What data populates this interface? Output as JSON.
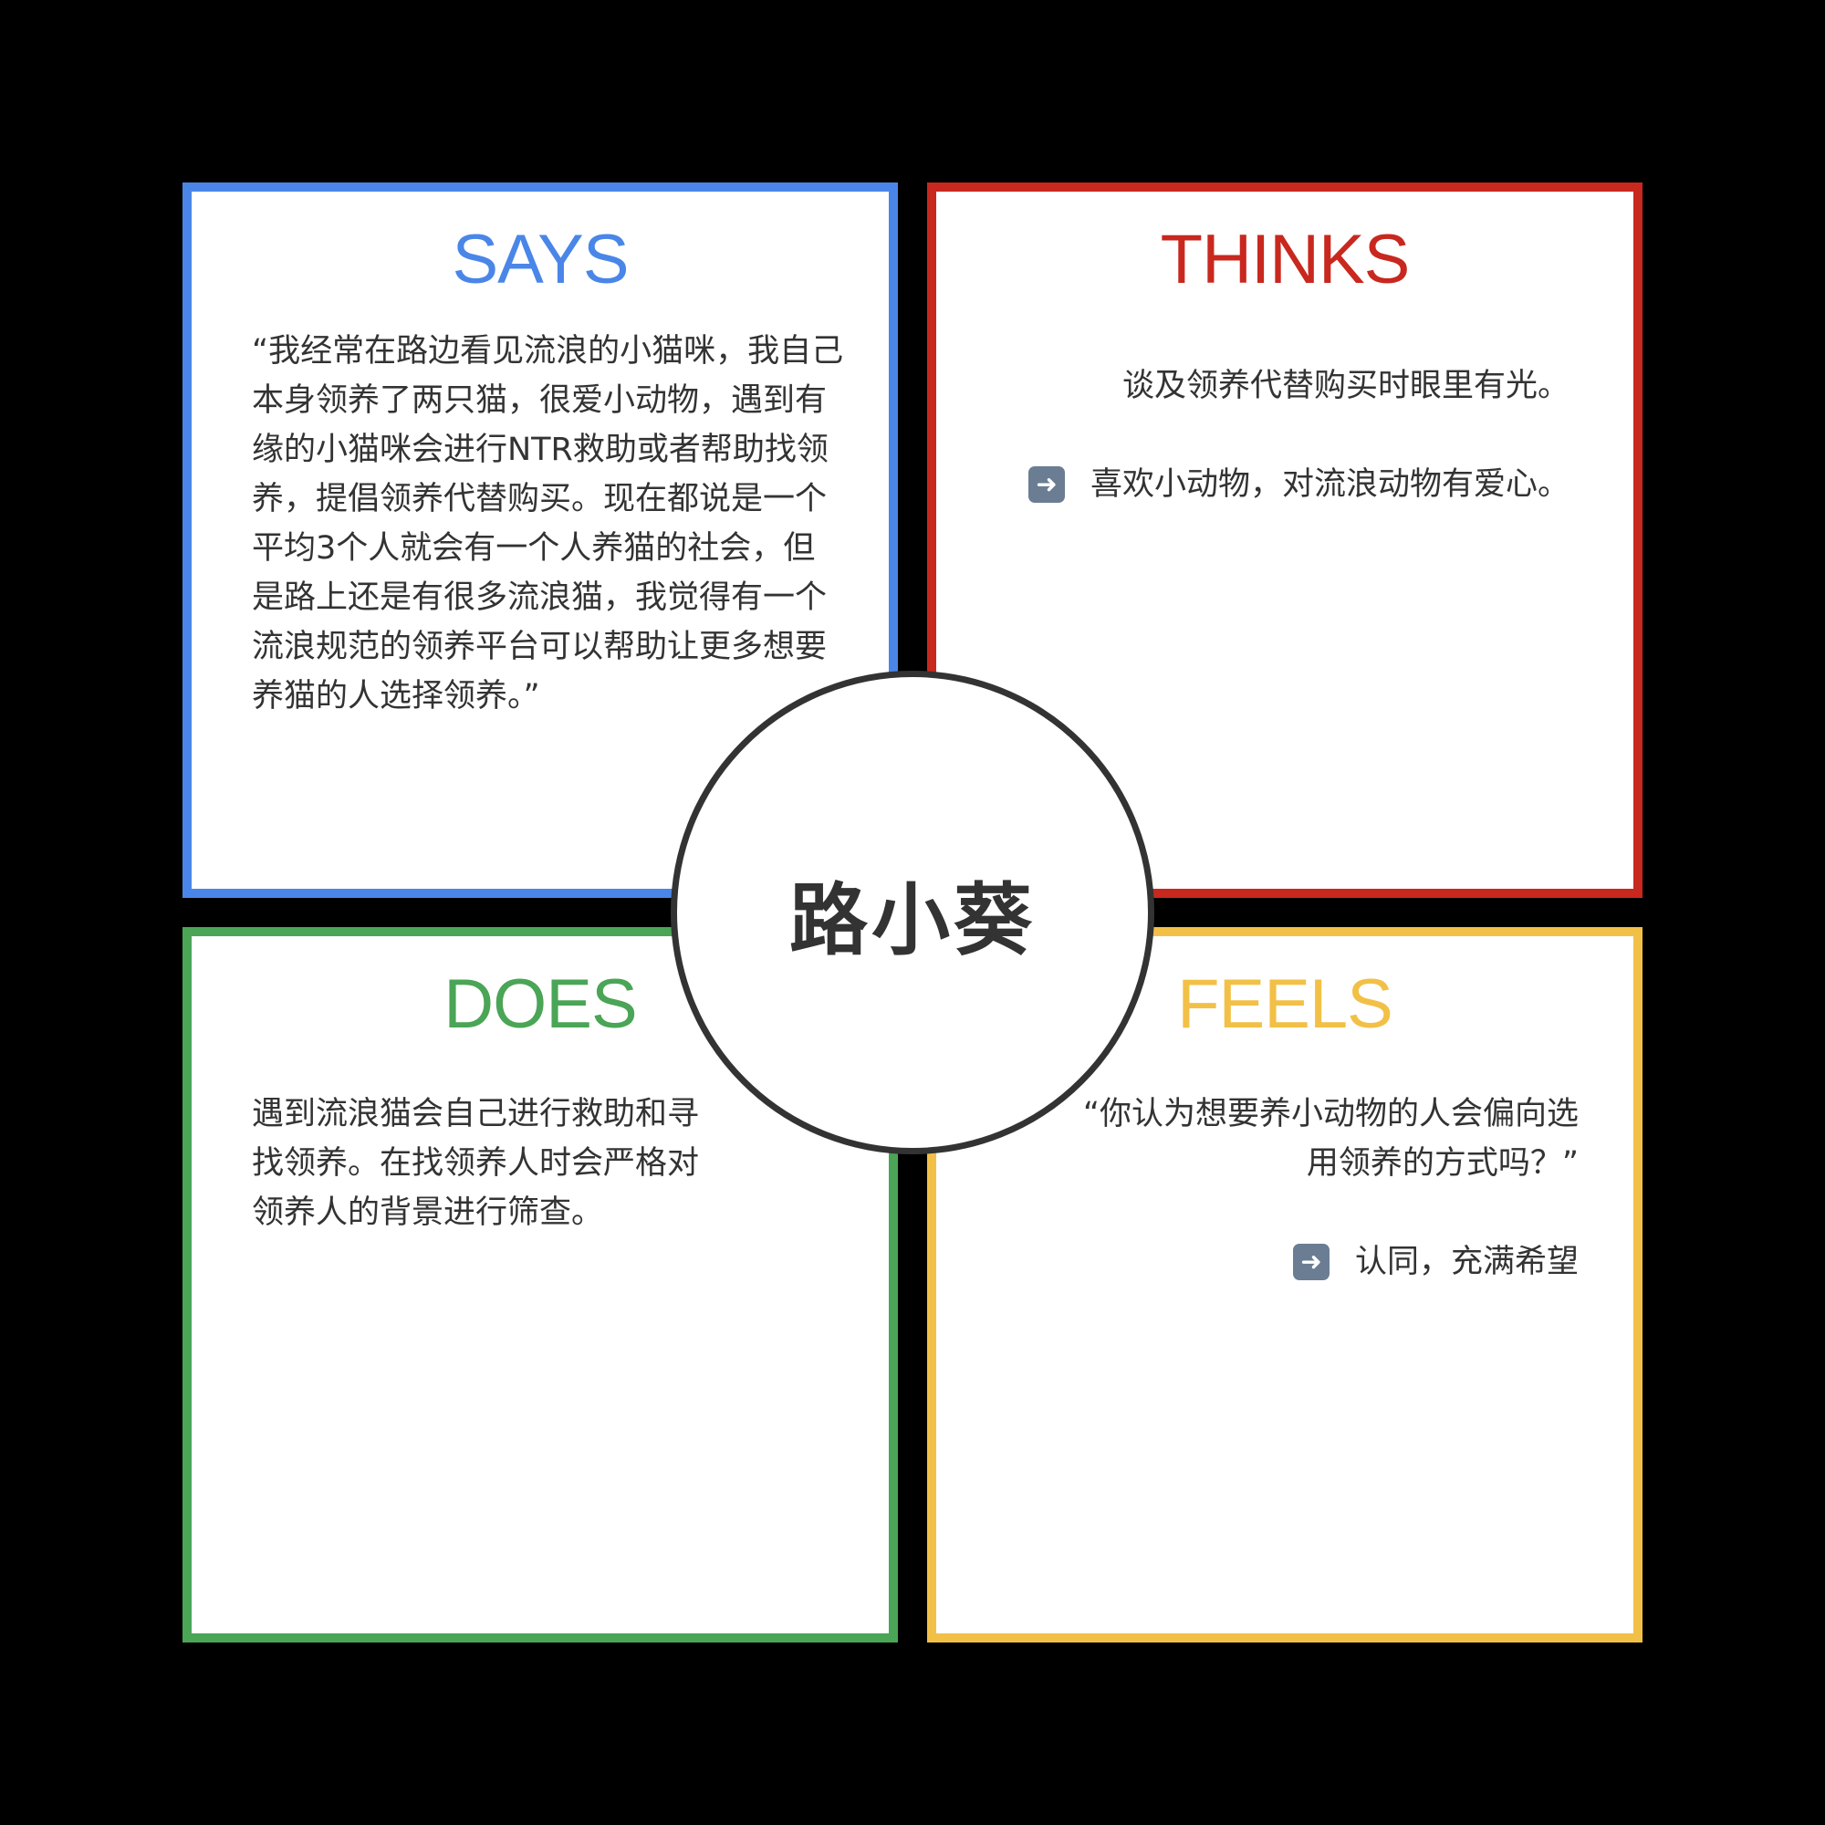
{
  "colors": {
    "says": "#4a86e8",
    "thinks": "#c8281e",
    "does": "#4aa556",
    "feels": "#f2c046",
    "text": "#333333",
    "background": "#000000"
  },
  "center": {
    "name": "路小葵"
  },
  "says": {
    "title": "SAYS",
    "text": "“我经常在路边看见流浪的小猫咪，我自己本身领养了两只猫，很爱小动物，遇到有缘的小猫咪会进行NTR救助或者帮助找领养，提倡领养代替购买。现在都说是一个平均3个人就会有一个人养猫的社会，但是路上还是有很多流浪猫，我觉得有一个流浪规范的领养平台可以帮助让更多想要养猫的人选择领养。”"
  },
  "thinks": {
    "title": "THINKS",
    "line1": "谈及领养代替购买时眼里有光。",
    "icon": "right-arrow-icon",
    "line2": "喜欢小动物，对流浪动物有爱心。"
  },
  "does": {
    "title": "DOES",
    "text": "遇到流浪猫会自己进行救助和寻找领养。在找领养人时会严格对领养人的背景进行筛查。"
  },
  "feels": {
    "title": "FEELS",
    "line1": "“你认为想要养小动物的人会偏向选用领养的方式吗？”",
    "icon": "right-arrow-icon",
    "line2": "认同，充满希望"
  }
}
